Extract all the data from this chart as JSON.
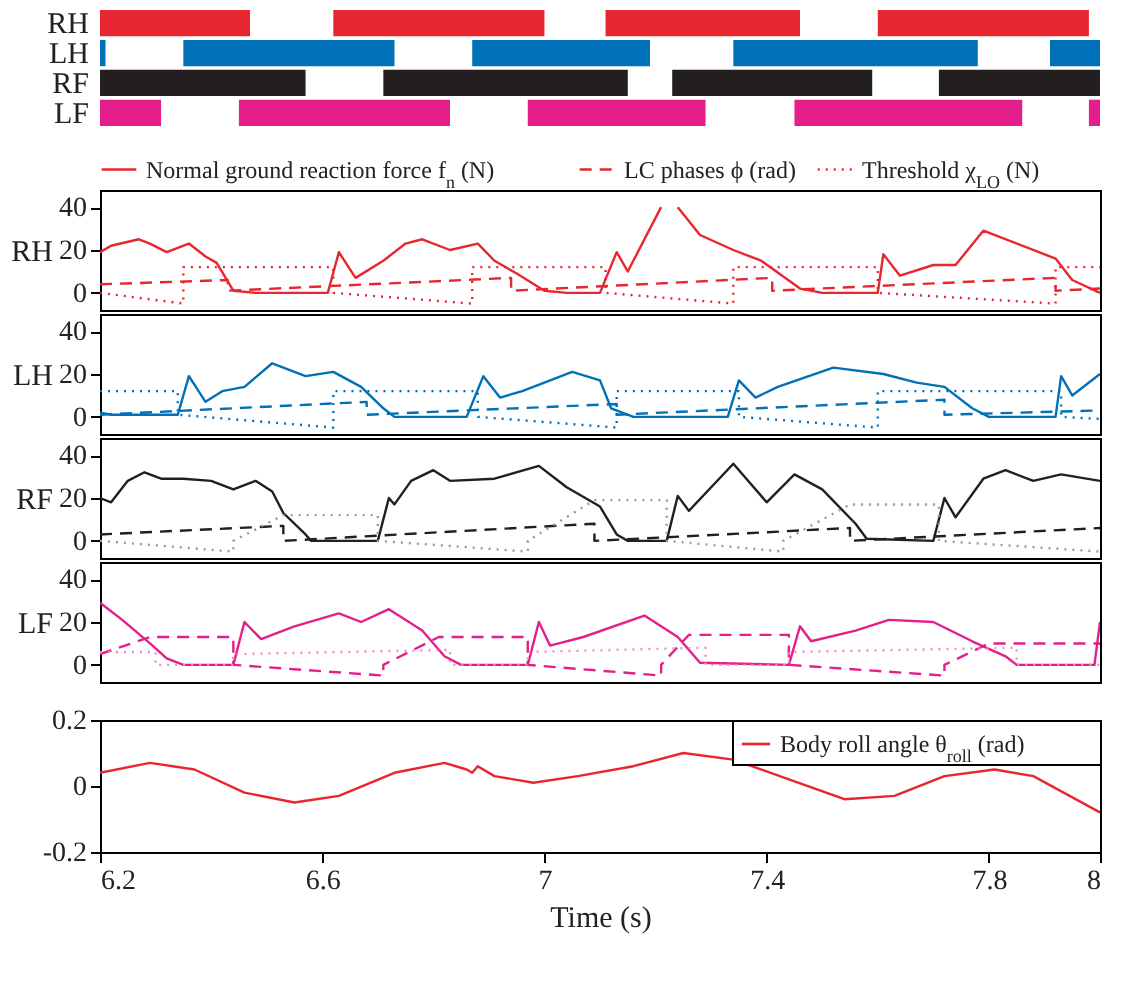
{
  "chart_data": [
    {
      "type": "bar",
      "orientation": "horizontal",
      "categories": [
        "RH",
        "LH",
        "RF",
        "LF"
      ],
      "xlim": [
        6.2,
        8
      ],
      "tick_labels": "y",
      "series": [
        {
          "base": [
            6.2,
            6.2,
            6.2,
            6.2
          ],
          "values": [
            0.27,
            0.01,
            0.37,
            0.11
          ],
          "colors": [
            "#e8262f",
            "#0070b8",
            "#231f20",
            "#e41f8c"
          ]
        },
        {
          "base": [
            6.62,
            6.35,
            6.71,
            6.45
          ],
          "values": [
            0.38,
            0.38,
            0.44,
            0.38
          ],
          "colors": [
            "#e8262f",
            "#0070b8",
            "#231f20",
            "#e41f8c"
          ]
        },
        {
          "base": [
            7.11,
            6.87,
            7.23,
            6.97
          ],
          "values": [
            0.35,
            0.32,
            0.36,
            0.32
          ],
          "colors": [
            "#e8262f",
            "#0070b8",
            "#231f20",
            "#e41f8c"
          ]
        },
        {
          "base": [
            7.6,
            7.34,
            7.71,
            7.45
          ],
          "values": [
            0.38,
            0.44,
            0.29,
            0.41
          ],
          "colors": [
            "#e8262f",
            "#0070b8",
            "#231f20",
            "#e41f8c"
          ]
        },
        {
          "base": [
            null,
            7.91,
            null,
            7.98
          ],
          "values": [
            null,
            0.09,
            null,
            0.02
          ],
          "colors": [
            null,
            "#0070b8",
            null,
            "#e41f8c"
          ]
        }
      ]
    },
    {
      "type": "line",
      "ylabel": "RH",
      "xlim": [
        6.2,
        8
      ],
      "ylim": [
        -8,
        48
      ],
      "yticks": [
        0,
        20,
        40
      ],
      "tick_labels": "y",
      "legend": "top",
      "series": [
        {
          "name": "Normal ground reaction force f$_{n}$ (N)",
          "color": "#e8262f",
          "line_style": "solid",
          "x": [
            6.2,
            6.22,
            6.27,
            6.29,
            6.32,
            6.36,
            6.39,
            6.41,
            6.44,
            6.48,
            6.61,
            6.63,
            6.66,
            6.71,
            6.75,
            6.78,
            6.83,
            6.88,
            6.91,
            6.95,
            7.0,
            7.04,
            7.1,
            7.13,
            7.15,
            7.21,
            7.22,
            7.24,
            7.28,
            7.34,
            7.39,
            7.46,
            7.5,
            7.6,
            7.61,
            7.64,
            7.7,
            7.74,
            7.79,
            7.89,
            7.92,
            7.95,
            8.0
          ],
          "values": [
            19,
            22,
            25,
            23,
            19,
            23,
            17,
            14,
            1,
            0,
            0,
            19,
            7,
            15,
            23,
            25,
            20,
            23,
            15,
            9,
            1,
            0,
            0,
            19,
            10,
            40,
            null,
            40,
            27,
            20,
            15,
            2,
            0,
            0,
            18,
            8,
            13,
            13,
            29,
            19,
            16,
            6,
            0
          ]
        },
        {
          "name": "LC phases ϕ (rad)",
          "color": "#e8262f",
          "line_style": "dashed",
          "x": [
            6.2,
            6.43,
            6.43,
            6.94,
            6.94,
            7.41,
            7.41,
            7.92,
            7.92,
            8.0
          ],
          "values": [
            4,
            6,
            1,
            7,
            1,
            7,
            1,
            7,
            1,
            2
          ]
        },
        {
          "name": "Threshold χ$_{LO}$ (N)",
          "color": "#e8262f",
          "line_style": "dotted",
          "x": [
            6.2,
            6.35,
            6.35,
            6.62,
            6.62,
            6.87,
            6.87,
            7.11,
            7.11,
            7.34,
            7.34,
            7.6,
            7.6,
            7.92,
            7.92,
            8.0
          ],
          "values": [
            0,
            -5,
            12,
            12,
            0,
            -5,
            12,
            12,
            0,
            -5,
            12,
            12,
            0,
            -5,
            12,
            12
          ]
        }
      ]
    },
    {
      "type": "line",
      "ylabel": "LH",
      "xlim": [
        6.2,
        8
      ],
      "ylim": [
        -8,
        48
      ],
      "yticks": [
        0,
        20,
        40
      ],
      "tick_labels": "y",
      "series": [
        {
          "color": "#0070b8",
          "line_style": "solid",
          "x": [
            6.2,
            6.22,
            6.34,
            6.36,
            6.39,
            6.42,
            6.46,
            6.51,
            6.57,
            6.62,
            6.67,
            6.71,
            6.73,
            6.86,
            6.89,
            6.92,
            6.96,
            7.05,
            7.1,
            7.12,
            7.16,
            7.33,
            7.35,
            7.38,
            7.42,
            7.52,
            7.61,
            7.67,
            7.72,
            7.77,
            7.8,
            7.92,
            7.93,
            7.95,
            8.0
          ],
          "values": [
            2,
            1,
            1,
            19,
            7,
            12,
            14,
            25,
            19,
            21,
            14,
            4,
            0,
            0,
            19,
            9,
            12,
            21,
            17,
            4,
            0,
            0,
            17,
            9,
            14,
            23,
            20,
            16,
            14,
            4,
            0,
            0,
            19,
            10,
            20
          ]
        },
        {
          "color": "#0070b8",
          "line_style": "dashed",
          "x": [
            6.2,
            6.68,
            6.68,
            7.13,
            7.13,
            7.72,
            7.72,
            8.0
          ],
          "values": [
            1,
            7,
            1,
            6,
            1,
            8,
            1,
            3
          ]
        },
        {
          "color": "#0070b8",
          "line_style": "dotted",
          "x": [
            6.2,
            6.34,
            6.34,
            6.62,
            6.62,
            6.88,
            6.88,
            7.13,
            7.13,
            7.35,
            7.35,
            7.6,
            7.6,
            7.93,
            7.93,
            8.0
          ],
          "values": [
            12,
            12,
            1,
            -5,
            12,
            12,
            0,
            -5,
            12,
            12,
            0,
            -5,
            12,
            12,
            0,
            -1
          ]
        }
      ]
    },
    {
      "type": "line",
      "ylabel": "RF",
      "xlim": [
        6.2,
        8
      ],
      "ylim": [
        -8,
        48
      ],
      "yticks": [
        0,
        20,
        40
      ],
      "tick_labels": "y",
      "series": [
        {
          "color": "#231f20",
          "line_style": "solid",
          "x": [
            6.2,
            6.22,
            6.25,
            6.28,
            6.31,
            6.35,
            6.4,
            6.44,
            6.48,
            6.51,
            6.53,
            6.57,
            6.58,
            6.7,
            6.72,
            6.73,
            6.76,
            6.8,
            6.83,
            6.91,
            6.99,
            7.04,
            7.1,
            7.13,
            7.15,
            7.22,
            7.24,
            7.26,
            7.34,
            7.4,
            7.45,
            7.5,
            7.56,
            7.58,
            7.7,
            7.72,
            7.74,
            7.79,
            7.83,
            7.88,
            7.93,
            8.0
          ],
          "values": [
            20,
            18,
            28,
            32,
            29,
            29,
            28,
            24,
            28,
            23,
            13,
            3,
            0,
            0,
            20,
            17,
            28,
            33,
            28,
            29,
            35,
            25,
            16,
            3,
            0,
            0,
            21,
            14,
            36,
            18,
            31,
            24,
            8,
            1,
            0,
            20,
            11,
            29,
            33,
            28,
            31,
            28
          ]
        },
        {
          "color": "#231f20",
          "line_style": "dashed",
          "x": [
            6.2,
            6.53,
            6.53,
            7.09,
            7.09,
            7.55,
            7.55,
            8.0
          ],
          "values": [
            3,
            7,
            0,
            8,
            0,
            6,
            0,
            6
          ]
        },
        {
          "color": "#999999",
          "line_style": "dotted",
          "x": [
            6.2,
            6.44,
            6.44,
            6.53,
            6.7,
            6.7,
            6.97,
            6.97,
            7.09,
            7.22,
            7.22,
            7.43,
            7.43,
            7.55,
            7.71,
            7.71,
            8.0
          ],
          "values": [
            0,
            -5,
            0,
            12,
            12,
            0,
            -5,
            0,
            19,
            19,
            0,
            -5,
            0,
            17,
            17,
            0,
            -5
          ]
        }
      ]
    },
    {
      "type": "line",
      "ylabel": "LF",
      "xlim": [
        6.2,
        8
      ],
      "ylim": [
        -8,
        48
      ],
      "yticks": [
        0,
        20,
        40
      ],
      "tick_labels": "y",
      "series": [
        {
          "color": "#e41f8c",
          "line_style": "solid",
          "x": [
            6.2,
            6.24,
            6.29,
            6.32,
            6.35,
            6.44,
            6.46,
            6.49,
            6.55,
            6.63,
            6.67,
            6.72,
            6.78,
            6.82,
            6.85,
            6.97,
            6.99,
            7.01,
            7.07,
            7.18,
            7.24,
            7.28,
            7.44,
            7.46,
            7.48,
            7.56,
            7.62,
            7.7,
            7.77,
            7.83,
            7.85,
            7.99,
            8.0
          ],
          "values": [
            29,
            21,
            10,
            3,
            0,
            0,
            20,
            12,
            18,
            24,
            20,
            26,
            16,
            4,
            0,
            0,
            20,
            9,
            13,
            23,
            13,
            1,
            0,
            18,
            11,
            16,
            21,
            20,
            11,
            4,
            0,
            0,
            20
          ]
        },
        {
          "color": "#e41f8c",
          "line_style": "dashed",
          "x": [
            6.2,
            6.29,
            6.44,
            6.44,
            6.71,
            6.71,
            6.81,
            6.97,
            6.97,
            7.21,
            7.21,
            7.26,
            7.44,
            7.44,
            7.72,
            7.72,
            7.8,
            8.0
          ],
          "values": [
            5,
            13,
            13,
            0,
            -5,
            0,
            13,
            13,
            0,
            -5,
            0,
            14,
            14,
            0,
            -5,
            0,
            10,
            10
          ]
        },
        {
          "color": "#f08cc4",
          "line_style": "dotted",
          "x": [
            6.2,
            6.3,
            6.3,
            6.44,
            6.44,
            6.83,
            6.83,
            6.97,
            6.97,
            7.29,
            7.29,
            7.44,
            7.44,
            7.85,
            7.85,
            8.0
          ],
          "values": [
            6,
            6,
            0,
            0,
            5,
            7,
            0,
            0,
            6,
            8,
            0,
            0,
            6,
            8,
            0,
            0
          ]
        }
      ]
    },
    {
      "type": "line",
      "xlabel": "Time (s)",
      "xlim": [
        6.2,
        8
      ],
      "xticks": [
        6.2,
        6.6,
        7,
        7.4,
        7.8,
        8
      ],
      "ylim": [
        -0.2,
        0.2
      ],
      "yticks": [
        -0.2,
        0,
        0.2
      ],
      "legend": "top right",
      "series": [
        {
          "name": "Body roll angle θ$_{roll}$ (rad)",
          "color": "#e8262f",
          "line_style": "solid",
          "x": [
            6.2,
            6.29,
            6.37,
            6.46,
            6.55,
            6.63,
            6.73,
            6.82,
            6.86,
            6.87,
            6.88,
            6.91,
            6.98,
            7.06,
            7.16,
            7.25,
            7.34,
            7.44,
            7.54,
            7.63,
            7.72,
            7.81,
            7.88,
            8.0
          ],
          "values": [
            0.04,
            0.07,
            0.05,
            -0.02,
            -0.05,
            -0.03,
            0.04,
            0.07,
            0.05,
            0.04,
            0.06,
            0.03,
            0.01,
            0.03,
            0.06,
            0.1,
            0.08,
            0.02,
            -0.04,
            -0.03,
            0.03,
            0.05,
            0.03,
            -0.08
          ]
        }
      ]
    }
  ]
}
